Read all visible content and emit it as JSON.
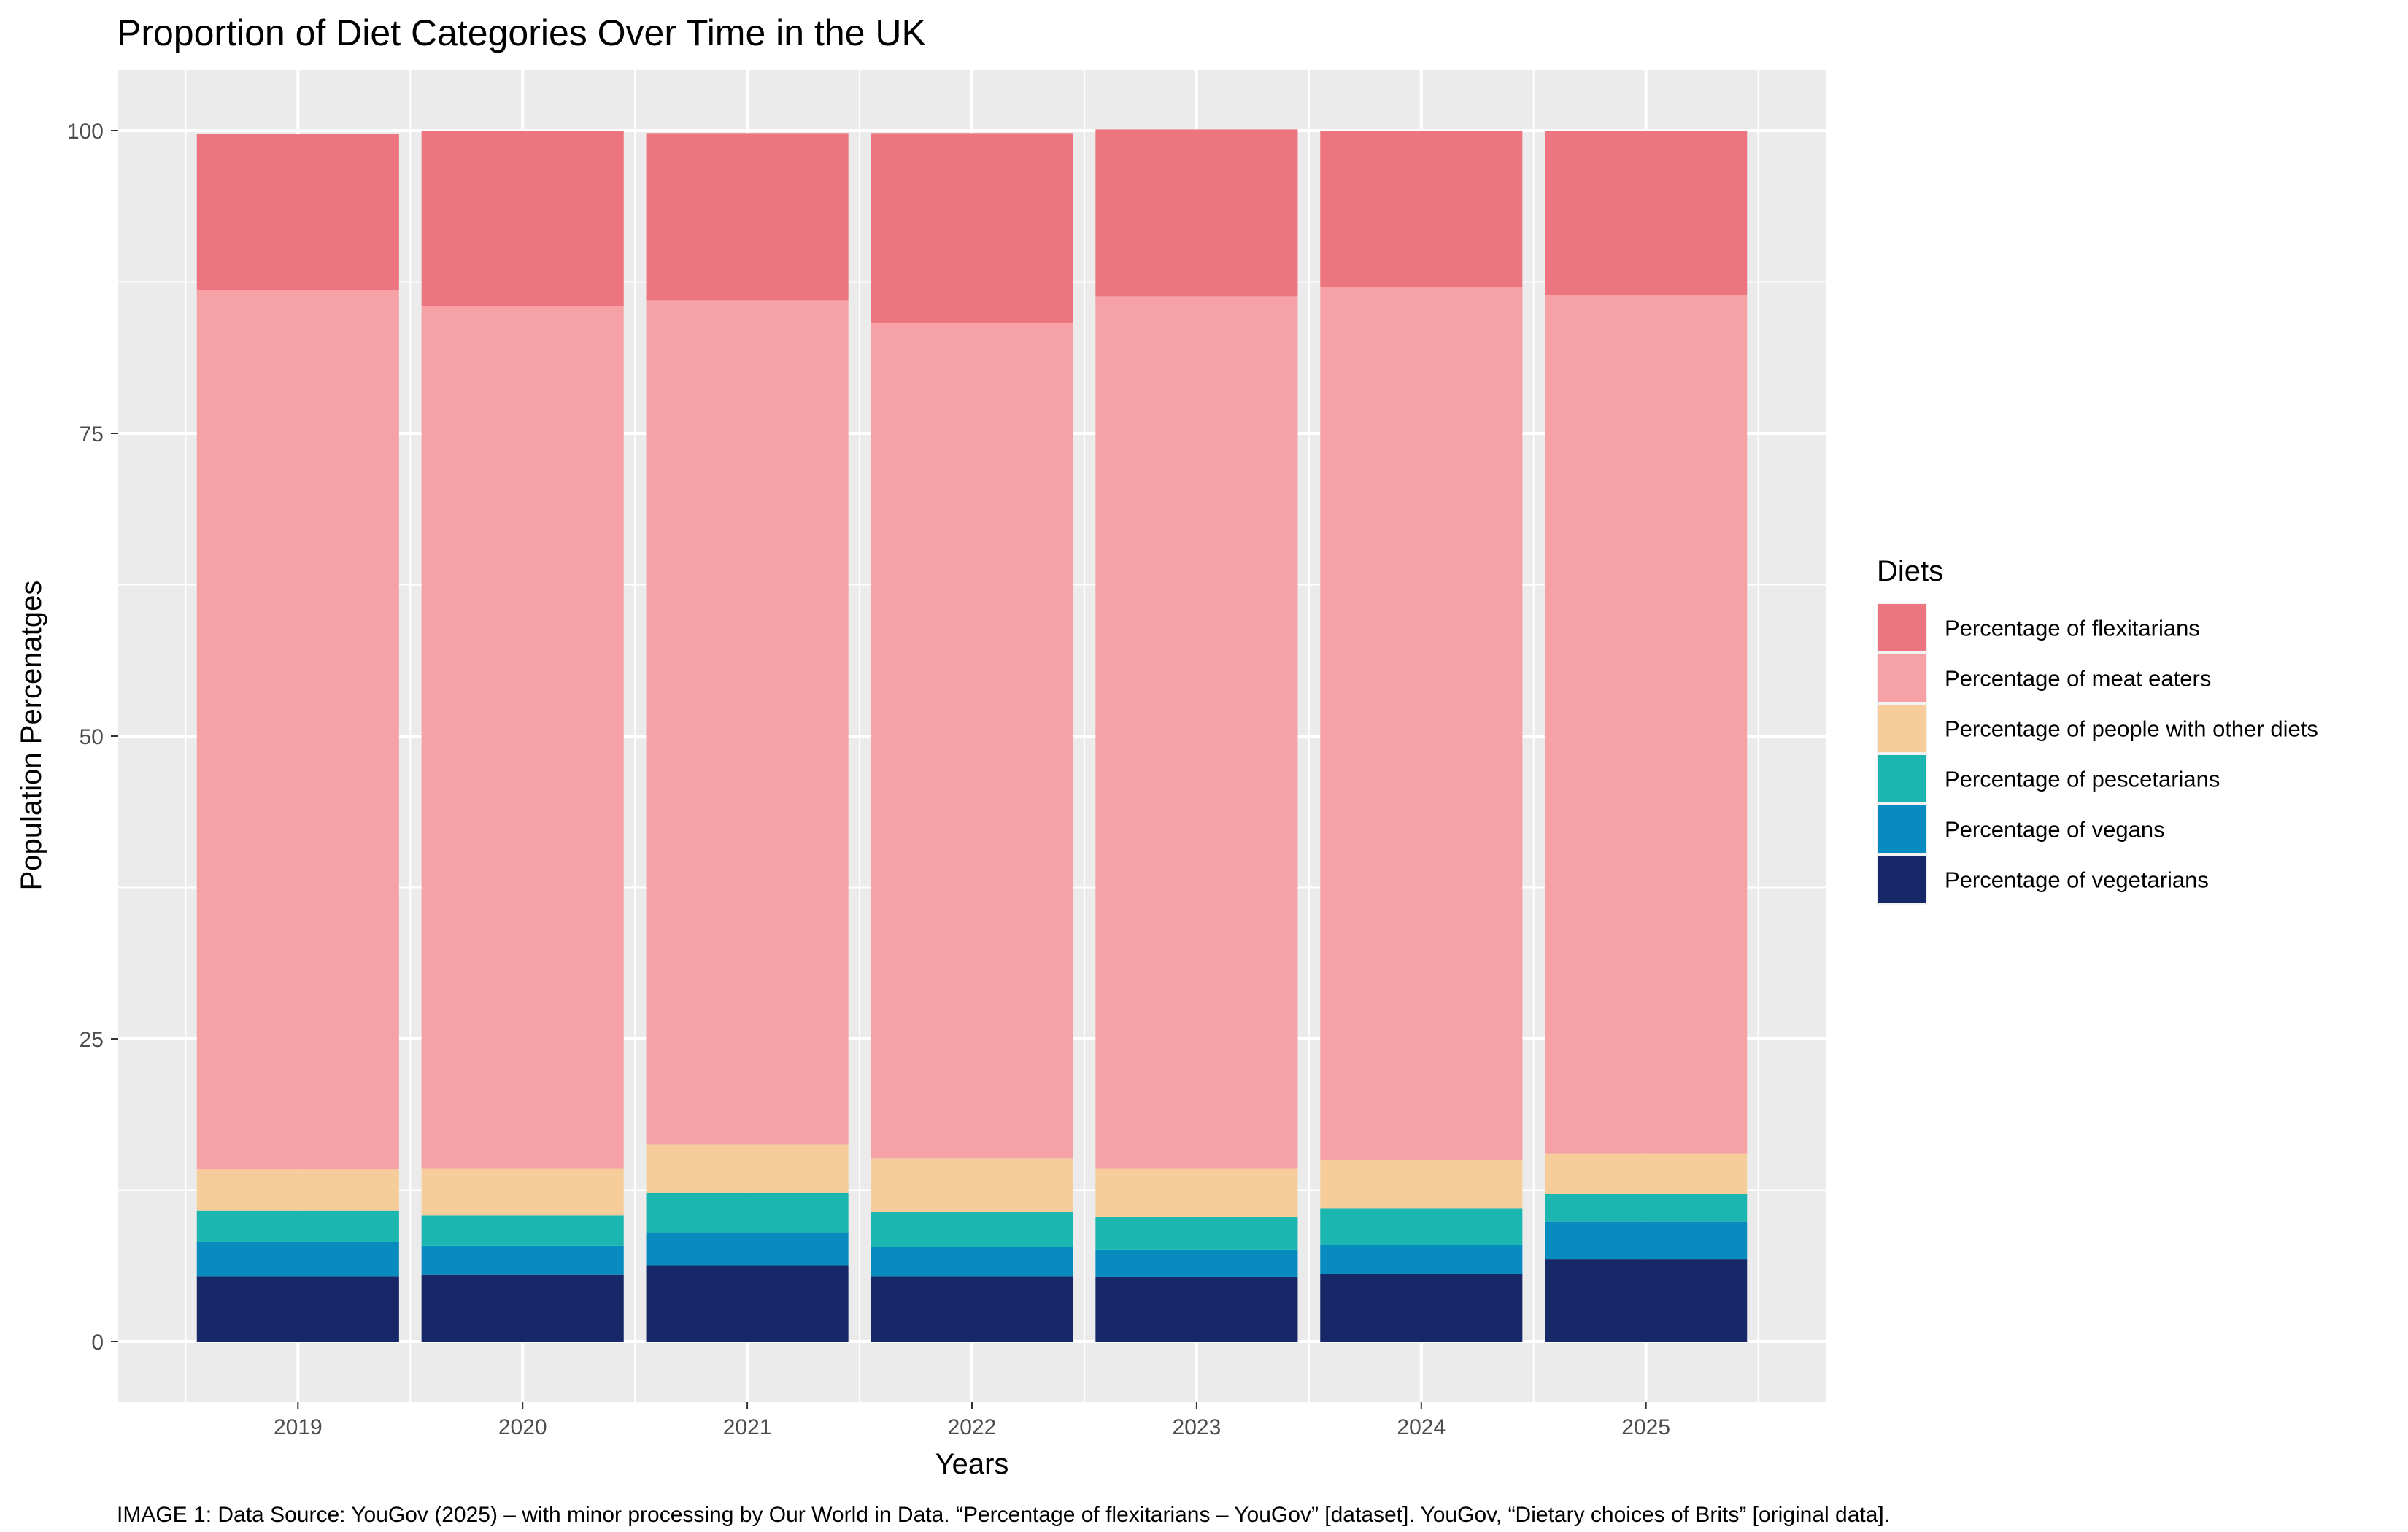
{
  "chart_data": {
    "type": "bar",
    "stacked": true,
    "title": "Proportion of Diet Categories Over Time in the UK",
    "xlabel": "Years",
    "ylabel": "Population Percenatges",
    "caption": "IMAGE 1: Data Source: YouGov (2025) – with minor processing by Our World in Data. “Percentage of flexitarians – YouGov” [dataset]. YouGov, “Dietary choices of Brits” [original data].",
    "categories": [
      "2019",
      "2020",
      "2021",
      "2022",
      "2023",
      "2024",
      "2025"
    ],
    "ylim": [
      -5,
      105
    ],
    "yticks": [
      0,
      25,
      50,
      75,
      100
    ],
    "grid": true,
    "legend": {
      "title": "Diets",
      "position": "right"
    },
    "series": [
      {
        "name": "Percentage of vegetarians",
        "color": "#172869",
        "values": [
          5.4,
          5.5,
          6.3,
          5.4,
          5.3,
          5.6,
          6.8
        ]
      },
      {
        "name": "Percentage of vegans",
        "color": "#088bbe",
        "values": [
          2.8,
          2.4,
          2.7,
          2.4,
          2.3,
          2.4,
          3.1
        ]
      },
      {
        "name": "Percentage of pescetarians",
        "color": "#1bb6af",
        "values": [
          2.6,
          2.5,
          3.3,
          2.9,
          2.7,
          3.0,
          2.3
        ]
      },
      {
        "name": "Percentage of people with other diets",
        "color": "#f6cd9a",
        "values": [
          3.4,
          3.9,
          4.0,
          4.4,
          4.0,
          4.0,
          3.3
        ]
      },
      {
        "name": "Percentage of meat eaters",
        "color": "#f5a1a5",
        "values": [
          72.6,
          71.2,
          69.7,
          69.0,
          72.0,
          72.1,
          70.9
        ]
      },
      {
        "name": "Percentage of flexitarians",
        "color": "#ed7580",
        "values": [
          12.9,
          14.5,
          13.8,
          15.7,
          13.8,
          12.9,
          13.6
        ]
      }
    ]
  }
}
